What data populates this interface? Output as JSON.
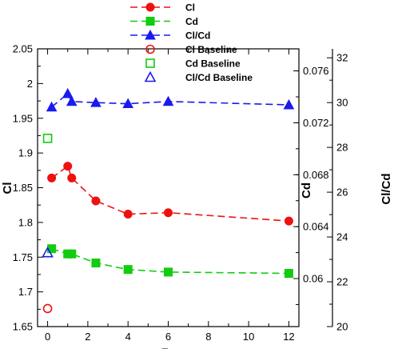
{
  "chart_data": {
    "type": "scatter",
    "title": "",
    "xlabel": "F+",
    "xlim": [
      -0.5,
      12.5
    ],
    "xticks": [
      0,
      2,
      4,
      6,
      8,
      10,
      12
    ],
    "grid": false,
    "legend_position": "top",
    "axes": {
      "cl": {
        "label": "Cl",
        "side": "left",
        "ylim": [
          1.65,
          2.05
        ],
        "ticks": [
          "1.65",
          "1.7",
          "1.75",
          "1.8",
          "1.85",
          "1.9",
          "1.95",
          "2",
          "2.05"
        ]
      },
      "cd": {
        "label": "Cd",
        "side": "right",
        "ylim": [
          0.0563,
          0.0777
        ],
        "ticks": [
          "0.06",
          "0.064",
          "0.068",
          "0.072",
          "0.076"
        ]
      },
      "clcd": {
        "label": "Cl/Cd",
        "side": "right",
        "ylim": [
          20,
          32.4
        ],
        "ticks": [
          "20",
          "22",
          "24",
          "26",
          "28",
          "30",
          "32"
        ]
      }
    },
    "series": [
      {
        "name": "Cl",
        "axis": "cl",
        "color": "#ee1111",
        "marker": "circle",
        "filled": true,
        "line": "dashed",
        "x": [
          0.2,
          1.0,
          1.2,
          2.4,
          4.0,
          6.0,
          12.0
        ],
        "y": [
          1.864,
          1.881,
          1.864,
          1.831,
          1.812,
          1.814,
          1.802
        ]
      },
      {
        "name": "Cd",
        "axis": "cd",
        "color": "#11cc11",
        "marker": "square",
        "filled": true,
        "line": "dashed",
        "x": [
          0.2,
          1.0,
          1.2,
          2.4,
          4.0,
          6.0,
          12.0
        ],
        "y": [
          0.0623,
          0.0619,
          0.0619,
          0.0612,
          0.0607,
          0.0605,
          0.0604
        ]
      },
      {
        "name": "Cl/Cd",
        "axis": "clcd",
        "color": "#1a1aee",
        "marker": "triangle",
        "filled": true,
        "line": "dashed",
        "x": [
          0.2,
          1.0,
          1.2,
          2.4,
          4.0,
          6.0,
          12.0
        ],
        "y": [
          29.8,
          30.4,
          30.05,
          30.0,
          29.95,
          30.05,
          29.9
        ]
      },
      {
        "name": "Cl Baseline",
        "axis": "cl",
        "color": "#ee1111",
        "marker": "circle",
        "filled": false,
        "line": "none",
        "x": [
          0
        ],
        "y": [
          1.676
        ]
      },
      {
        "name": "Cd Baseline",
        "axis": "cd",
        "color": "#11cc11",
        "marker": "square",
        "filled": false,
        "line": "none",
        "x": [
          0
        ],
        "y": [
          0.0708
        ]
      },
      {
        "name": "Cl/Cd Baseline",
        "axis": "clcd",
        "color": "#1a1aee",
        "marker": "triangle",
        "filled": false,
        "line": "none",
        "x": [
          0
        ],
        "y": [
          23.3
        ]
      }
    ]
  }
}
